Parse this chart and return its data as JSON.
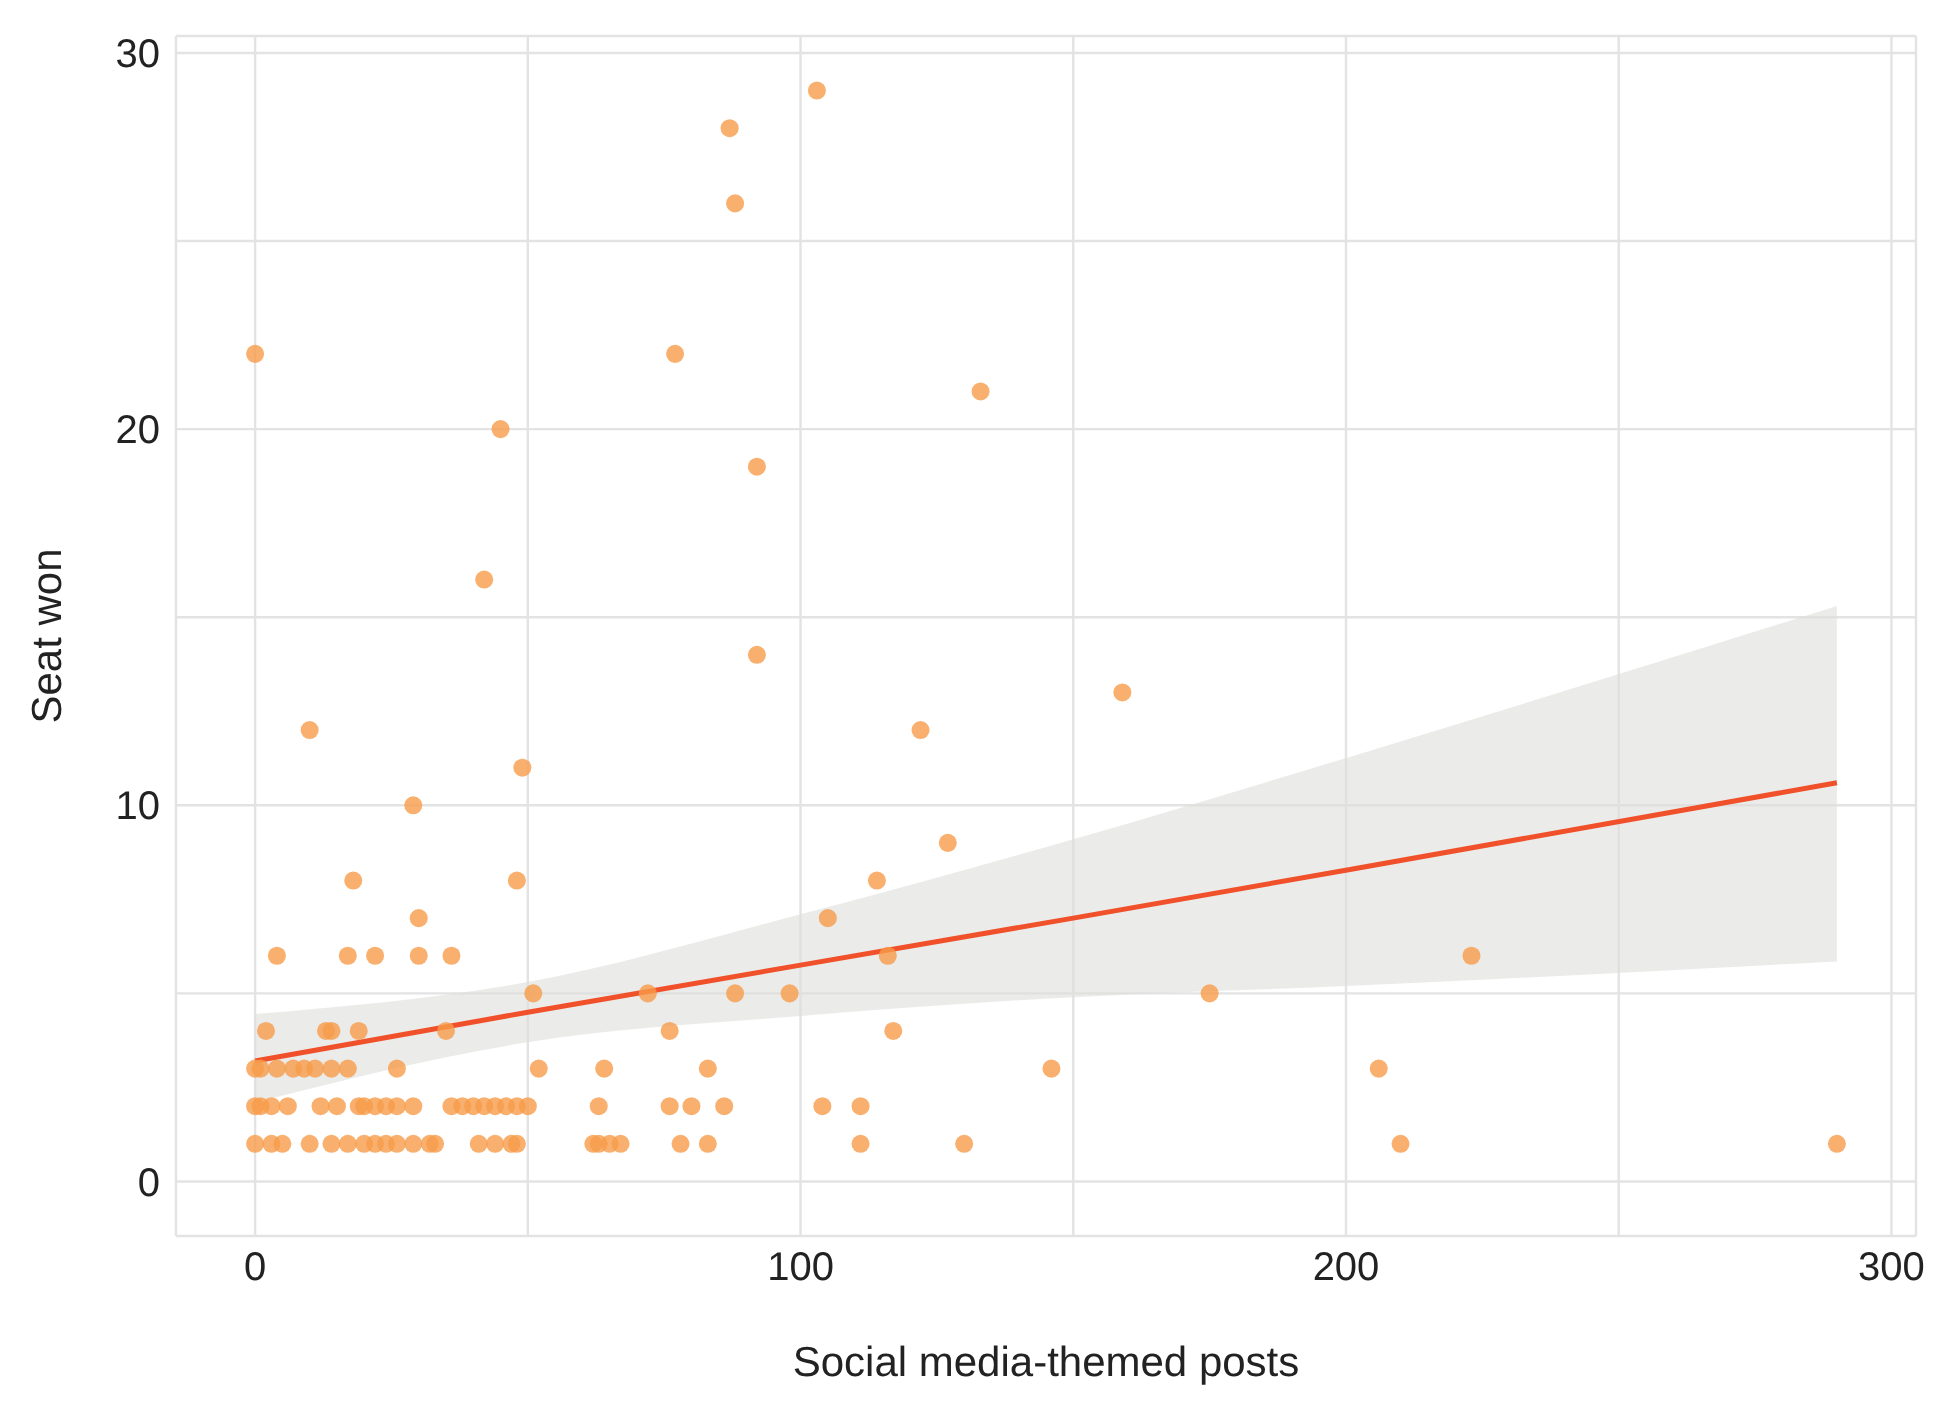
{
  "chart_data": {
    "type": "scatter",
    "xlabel": "Social media-themed posts",
    "ylabel": "Seat won",
    "xlim": [
      -14.5,
      304.5
    ],
    "ylim": [
      -1.45,
      30.45
    ],
    "xticks": [
      0,
      {
        "value": 50,
        "label": null
      },
      100,
      {
        "value": 150,
        "label": null
      },
      200,
      {
        "value": 250,
        "label": null
      },
      300
    ],
    "yticks": [
      0,
      {
        "value": 5,
        "label": null
      },
      10,
      {
        "value": 15,
        "label": null
      },
      20,
      {
        "value": 25,
        "label": null
      },
      30
    ],
    "grid": true,
    "series": [
      {
        "marker": "circle",
        "color": "#f89c4a",
        "x": [
          0,
          1,
          3,
          6,
          12,
          15,
          19,
          20,
          22,
          24,
          26,
          29,
          36,
          38,
          40,
          42,
          44,
          46,
          48,
          50,
          63,
          76,
          80,
          86,
          104,
          111,
          0,
          3,
          5,
          10,
          14,
          17,
          20,
          22,
          24,
          26,
          29,
          32,
          33,
          41,
          44,
          47,
          48,
          62,
          63,
          65,
          67,
          78,
          83,
          111,
          130,
          210,
          290,
          0,
          1,
          4,
          7,
          9,
          11,
          14,
          17,
          26,
          52,
          64,
          83,
          146,
          206,
          2,
          13,
          14,
          19,
          35,
          76,
          117,
          51,
          72,
          88,
          98,
          175,
          4,
          17,
          22,
          30,
          36,
          116,
          223,
          30,
          105,
          18,
          48,
          114,
          127,
          29,
          49,
          10,
          122,
          159,
          92,
          42,
          92,
          45,
          77,
          0,
          133,
          88,
          87,
          103
        ],
        "values": [
          2,
          2,
          2,
          2,
          2,
          2,
          2,
          2,
          2,
          2,
          2,
          2,
          2,
          2,
          2,
          2,
          2,
          2,
          2,
          2,
          2,
          2,
          2,
          2,
          2,
          2,
          1,
          1,
          1,
          1,
          1,
          1,
          1,
          1,
          1,
          1,
          1,
          1,
          1,
          1,
          1,
          1,
          1,
          1,
          1,
          1,
          1,
          1,
          1,
          1,
          1,
          1,
          1,
          3,
          3,
          3,
          3,
          3,
          3,
          3,
          3,
          3,
          3,
          3,
          3,
          3,
          3,
          4,
          4,
          4,
          4,
          4,
          4,
          4,
          5,
          5,
          5,
          5,
          5,
          6,
          6,
          6,
          6,
          6,
          6,
          6,
          7,
          7,
          8,
          8,
          8,
          9,
          10,
          11,
          12,
          12,
          13,
          14,
          16,
          19,
          20,
          22,
          22,
          21,
          26,
          28,
          29
        ]
      },
      {
        "type": "line",
        "color": "#f0502a",
        "x": [
          0,
          50,
          100,
          150,
          201,
          290
        ],
        "values": [
          3.2,
          4.5,
          5.75,
          7.0,
          8.3,
          10.6
        ],
        "lower": [
          2.1,
          3.7,
          4.4,
          4.9,
          5.2,
          5.85
        ],
        "upper": [
          4.45,
          5.3,
          7.1,
          9.1,
          11.3,
          15.3
        ]
      }
    ]
  }
}
